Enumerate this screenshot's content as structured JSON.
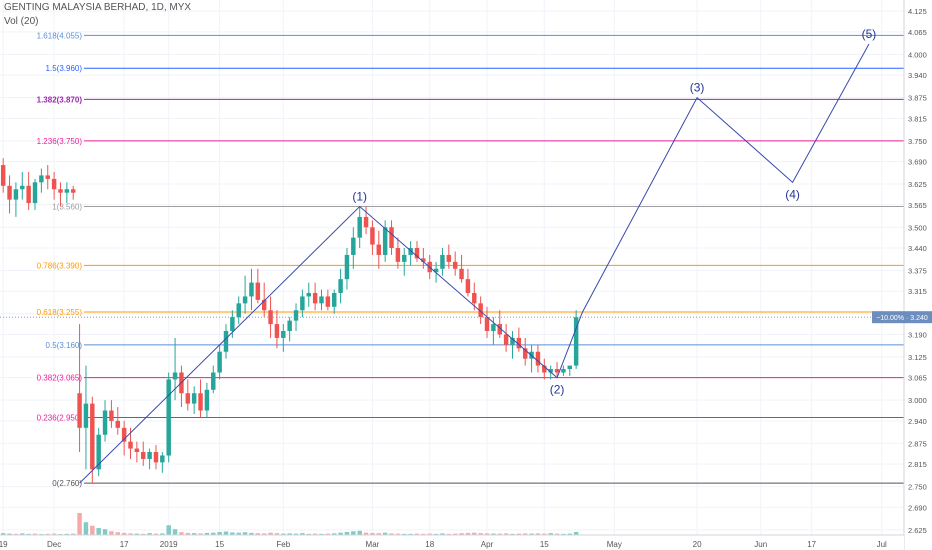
{
  "header": {
    "symbol": "GENTING MALAYSIA BERHAD, 1D, MYX",
    "volume_label": "Vol (20)"
  },
  "colors": {
    "up": "#26a69a",
    "down": "#ef5350",
    "vol_up": "#80cbc4",
    "vol_down": "#f7a9a7",
    "wave": "#3949ab",
    "price_tag": "#6c8ebf"
  },
  "chart_data": {
    "type": "candlestick",
    "y_axis": {
      "ticks": [
        "4.125",
        "4.065",
        "4.000",
        "3.940",
        "3.875",
        "3.815",
        "3.750",
        "3.690",
        "3.625",
        "3.565",
        "3.500",
        "3.440",
        "3.375",
        "3.315",
        "3.250",
        "3.190",
        "3.125",
        "3.065",
        "3.000",
        "2.940",
        "2.875",
        "2.815",
        "2.750",
        "2.690",
        "2.625"
      ],
      "range": [
        2.61,
        4.14
      ]
    },
    "x_axis": {
      "ticks": [
        {
          "label": "19",
          "i": 0
        },
        {
          "label": "Dec",
          "i": 8
        },
        {
          "label": "17",
          "i": 19
        },
        {
          "label": "2019",
          "i": 26
        },
        {
          "label": "15",
          "i": 34
        },
        {
          "label": "Feb",
          "i": 44
        },
        {
          "label": "Mar",
          "i": 58
        },
        {
          "label": "18",
          "i": 67
        },
        {
          "label": "Apr",
          "i": 76
        },
        {
          "label": "15",
          "i": 85
        },
        {
          "label": "May",
          "i": 96
        },
        {
          "label": "20",
          "i": 109
        },
        {
          "label": "Jun",
          "i": 119
        },
        {
          "label": "17",
          "i": 127
        },
        {
          "label": "Jul",
          "i": 138
        }
      ],
      "total_slots": 142
    },
    "fib_levels": [
      {
        "label": "1.618(4.055)",
        "value": 4.055,
        "color": "#5b8fd6",
        "bold": false
      },
      {
        "label": "1.5(3.960)",
        "value": 3.96,
        "color": "#2962ff",
        "bold": false
      },
      {
        "label": "1.382(3.870)",
        "value": 3.87,
        "color": "#9c27b0",
        "bold": true
      },
      {
        "label": "1.236(3.750)",
        "value": 3.75,
        "color": "#e91e9c",
        "bold": false
      },
      {
        "label": "1(3.560)",
        "value": 3.56,
        "color": "#9e9e9e",
        "bold": false
      },
      {
        "label": "0.786(3.390)",
        "value": 3.39,
        "color": "#ff9800",
        "bold": false
      },
      {
        "label": "0.618(3.255)",
        "value": 3.255,
        "color": "#ff9800",
        "bold": false
      },
      {
        "label": "0.5(3.160)",
        "value": 3.16,
        "color": "#5b8fd6",
        "bold": false
      },
      {
        "label": "0.382(3.065)",
        "value": 3.065,
        "color": "#e91e9c",
        "bold": false
      },
      {
        "label": "0.236(2.950)",
        "value": 2.95,
        "color": "#e91e9c",
        "bold": false
      },
      {
        "label": "0(2.760)",
        "value": 2.76,
        "color": "#555555",
        "bold": false
      }
    ],
    "waves": [
      {
        "label": "(1)",
        "i": 56,
        "price": 3.56,
        "label_pos": "above"
      },
      {
        "label": "(2)",
        "i": 87,
        "price": 3.065,
        "label_pos": "below"
      },
      {
        "label": "(3)",
        "i": 109,
        "price": 3.875,
        "label_pos": "above"
      },
      {
        "label": "(4)",
        "i": 124,
        "price": 3.63,
        "label_pos": "below"
      },
      {
        "label": "(5)",
        "i": 136,
        "price": 4.03,
        "label_pos": "above"
      }
    ],
    "wave_path": [
      {
        "i": 12,
        "price": 2.76
      },
      {
        "i": 56,
        "price": 3.56
      },
      {
        "i": 87,
        "price": 3.065
      },
      {
        "i": 91,
        "price": 3.255
      },
      {
        "i": 109,
        "price": 3.875
      },
      {
        "i": 124,
        "price": 3.63
      },
      {
        "i": 136,
        "price": 4.03
      }
    ],
    "price_tag": {
      "label": "−10.00% · 3.240",
      "value": 3.24
    },
    "candles": [
      [
        3.68,
        3.7,
        3.6,
        3.62
      ],
      [
        3.62,
        3.65,
        3.54,
        3.58
      ],
      [
        3.58,
        3.63,
        3.53,
        3.61
      ],
      [
        3.61,
        3.66,
        3.58,
        3.62
      ],
      [
        3.62,
        3.66,
        3.55,
        3.57
      ],
      [
        3.57,
        3.64,
        3.55,
        3.63
      ],
      [
        3.63,
        3.67,
        3.6,
        3.65
      ],
      [
        3.65,
        3.68,
        3.61,
        3.64
      ],
      [
        3.64,
        3.66,
        3.58,
        3.61
      ],
      [
        3.61,
        3.63,
        3.56,
        3.6
      ],
      [
        3.6,
        3.63,
        3.57,
        3.61
      ],
      [
        3.61,
        3.62,
        3.58,
        3.6
      ],
      [
        3.02,
        3.22,
        2.85,
        2.92
      ],
      [
        2.92,
        3.1,
        2.8,
        2.99
      ],
      [
        2.99,
        3.01,
        2.76,
        2.8
      ],
      [
        2.8,
        2.92,
        2.78,
        2.9
      ],
      [
        2.9,
        3.0,
        2.88,
        2.97
      ],
      [
        2.97,
        3.0,
        2.92,
        2.94
      ],
      [
        2.94,
        2.98,
        2.9,
        2.92
      ],
      [
        2.92,
        2.94,
        2.84,
        2.88
      ],
      [
        2.88,
        2.92,
        2.83,
        2.86
      ],
      [
        2.86,
        2.88,
        2.82,
        2.85
      ],
      [
        2.85,
        2.88,
        2.81,
        2.83
      ],
      [
        2.83,
        2.86,
        2.8,
        2.85
      ],
      [
        2.85,
        2.87,
        2.8,
        2.82
      ],
      [
        2.82,
        2.85,
        2.79,
        2.84
      ],
      [
        2.84,
        3.08,
        2.82,
        3.06
      ],
      [
        3.06,
        3.18,
        3.0,
        3.08
      ],
      [
        3.08,
        3.1,
        2.98,
        3.02
      ],
      [
        3.02,
        3.06,
        2.97,
        2.99
      ],
      [
        2.99,
        3.04,
        2.96,
        3.02
      ],
      [
        3.02,
        3.06,
        2.95,
        2.97
      ],
      [
        2.97,
        3.05,
        2.95,
        3.03
      ],
      [
        3.03,
        3.1,
        3.02,
        3.08
      ],
      [
        3.08,
        3.16,
        3.06,
        3.14
      ],
      [
        3.14,
        3.22,
        3.12,
        3.2
      ],
      [
        3.2,
        3.26,
        3.18,
        3.24
      ],
      [
        3.24,
        3.3,
        3.22,
        3.28
      ],
      [
        3.28,
        3.36,
        3.25,
        3.3
      ],
      [
        3.3,
        3.38,
        3.26,
        3.34
      ],
      [
        3.34,
        3.38,
        3.28,
        3.29
      ],
      [
        3.29,
        3.34,
        3.24,
        3.26
      ],
      [
        3.26,
        3.3,
        3.18,
        3.22
      ],
      [
        3.22,
        3.26,
        3.15,
        3.18
      ],
      [
        3.18,
        3.22,
        3.14,
        3.2
      ],
      [
        3.2,
        3.24,
        3.17,
        3.23
      ],
      [
        3.23,
        3.28,
        3.2,
        3.26
      ],
      [
        3.26,
        3.32,
        3.24,
        3.3
      ],
      [
        3.3,
        3.34,
        3.27,
        3.31
      ],
      [
        3.31,
        3.34,
        3.26,
        3.28
      ],
      [
        3.28,
        3.32,
        3.26,
        3.3
      ],
      [
        3.3,
        3.32,
        3.26,
        3.27
      ],
      [
        3.27,
        3.32,
        3.25,
        3.31
      ],
      [
        3.31,
        3.38,
        3.28,
        3.35
      ],
      [
        3.35,
        3.44,
        3.32,
        3.42
      ],
      [
        3.42,
        3.5,
        3.38,
        3.47
      ],
      [
        3.47,
        3.56,
        3.44,
        3.53
      ],
      [
        3.53,
        3.56,
        3.48,
        3.5
      ],
      [
        3.5,
        3.52,
        3.42,
        3.45
      ],
      [
        3.45,
        3.49,
        3.38,
        3.42
      ],
      [
        3.42,
        3.52,
        3.4,
        3.5
      ],
      [
        3.5,
        3.52,
        3.42,
        3.44
      ],
      [
        3.44,
        3.47,
        3.38,
        3.4
      ],
      [
        3.4,
        3.44,
        3.36,
        3.42
      ],
      [
        3.42,
        3.46,
        3.39,
        3.44
      ],
      [
        3.44,
        3.46,
        3.4,
        3.41
      ],
      [
        3.41,
        3.44,
        3.38,
        3.4
      ],
      [
        3.4,
        3.42,
        3.35,
        3.37
      ],
      [
        3.37,
        3.4,
        3.34,
        3.38
      ],
      [
        3.38,
        3.44,
        3.36,
        3.42
      ],
      [
        3.42,
        3.45,
        3.38,
        3.4
      ],
      [
        3.4,
        3.43,
        3.36,
        3.38
      ],
      [
        3.38,
        3.42,
        3.34,
        3.35
      ],
      [
        3.35,
        3.38,
        3.3,
        3.31
      ],
      [
        3.31,
        3.34,
        3.26,
        3.28
      ],
      [
        3.28,
        3.3,
        3.22,
        3.24
      ],
      [
        3.24,
        3.27,
        3.18,
        3.2
      ],
      [
        3.2,
        3.24,
        3.16,
        3.22
      ],
      [
        3.22,
        3.26,
        3.18,
        3.19
      ],
      [
        3.19,
        3.22,
        3.14,
        3.16
      ],
      [
        3.16,
        3.2,
        3.12,
        3.18
      ],
      [
        3.18,
        3.21,
        3.14,
        3.15
      ],
      [
        3.15,
        3.18,
        3.1,
        3.12
      ],
      [
        3.12,
        3.16,
        3.08,
        3.14
      ],
      [
        3.14,
        3.16,
        3.08,
        3.1
      ],
      [
        3.1,
        3.12,
        3.06,
        3.08
      ],
      [
        3.08,
        3.1,
        3.06,
        3.09
      ],
      [
        3.09,
        3.11,
        3.07,
        3.08
      ],
      [
        3.08,
        3.1,
        3.07,
        3.09
      ],
      [
        3.09,
        3.1,
        3.07,
        3.1
      ],
      [
        3.1,
        3.26,
        3.09,
        3.24
      ]
    ],
    "volumes": [
      [
        0.8,
        1
      ],
      [
        0.6,
        1
      ],
      [
        0.5,
        0
      ],
      [
        0.7,
        1
      ],
      [
        0.5,
        1
      ],
      [
        0.6,
        0
      ],
      [
        0.4,
        1
      ],
      [
        0.5,
        0
      ],
      [
        0.6,
        0
      ],
      [
        0.4,
        1
      ],
      [
        0.5,
        1
      ],
      [
        0.6,
        0
      ],
      [
        9.5,
        0
      ],
      [
        5.5,
        1
      ],
      [
        4.0,
        0
      ],
      [
        3.0,
        1
      ],
      [
        2.5,
        1
      ],
      [
        1.6,
        0
      ],
      [
        1.2,
        0
      ],
      [
        0.9,
        0
      ],
      [
        0.7,
        0
      ],
      [
        0.6,
        1
      ],
      [
        0.5,
        0
      ],
      [
        0.8,
        1
      ],
      [
        0.6,
        0
      ],
      [
        0.7,
        1
      ],
      [
        4.2,
        1
      ],
      [
        2.5,
        1
      ],
      [
        1.2,
        0
      ],
      [
        0.9,
        0
      ],
      [
        0.8,
        1
      ],
      [
        0.7,
        0
      ],
      [
        0.9,
        1
      ],
      [
        1.0,
        1
      ],
      [
        1.3,
        1
      ],
      [
        1.5,
        1
      ],
      [
        1.1,
        1
      ],
      [
        1.0,
        1
      ],
      [
        1.2,
        1
      ],
      [
        0.9,
        1
      ],
      [
        0.8,
        0
      ],
      [
        0.7,
        0
      ],
      [
        1.0,
        0
      ],
      [
        0.8,
        0
      ],
      [
        0.6,
        1
      ],
      [
        0.7,
        1
      ],
      [
        0.6,
        1
      ],
      [
        0.8,
        1
      ],
      [
        0.5,
        1
      ],
      [
        0.6,
        0
      ],
      [
        0.5,
        1
      ],
      [
        0.6,
        0
      ],
      [
        0.7,
        1
      ],
      [
        1.0,
        1
      ],
      [
        1.3,
        1
      ],
      [
        1.6,
        1
      ],
      [
        1.8,
        1
      ],
      [
        1.0,
        0
      ],
      [
        0.9,
        0
      ],
      [
        0.8,
        0
      ],
      [
        1.0,
        1
      ],
      [
        0.7,
        0
      ],
      [
        0.6,
        0
      ],
      [
        0.5,
        1
      ],
      [
        0.5,
        1
      ],
      [
        0.6,
        0
      ],
      [
        0.5,
        0
      ],
      [
        0.6,
        0
      ],
      [
        0.5,
        1
      ],
      [
        0.7,
        1
      ],
      [
        0.5,
        0
      ],
      [
        0.6,
        0
      ],
      [
        0.8,
        0
      ],
      [
        0.9,
        0
      ],
      [
        1.0,
        0
      ],
      [
        0.8,
        0
      ],
      [
        0.7,
        0
      ],
      [
        0.6,
        1
      ],
      [
        0.6,
        0
      ],
      [
        0.7,
        0
      ],
      [
        0.5,
        1
      ],
      [
        0.6,
        0
      ],
      [
        0.7,
        0
      ],
      [
        0.6,
        1
      ],
      [
        0.7,
        0
      ],
      [
        0.6,
        0
      ],
      [
        0.8,
        1
      ],
      [
        0.6,
        0
      ],
      [
        0.5,
        1
      ],
      [
        0.6,
        1
      ],
      [
        1.3,
        1
      ]
    ]
  }
}
